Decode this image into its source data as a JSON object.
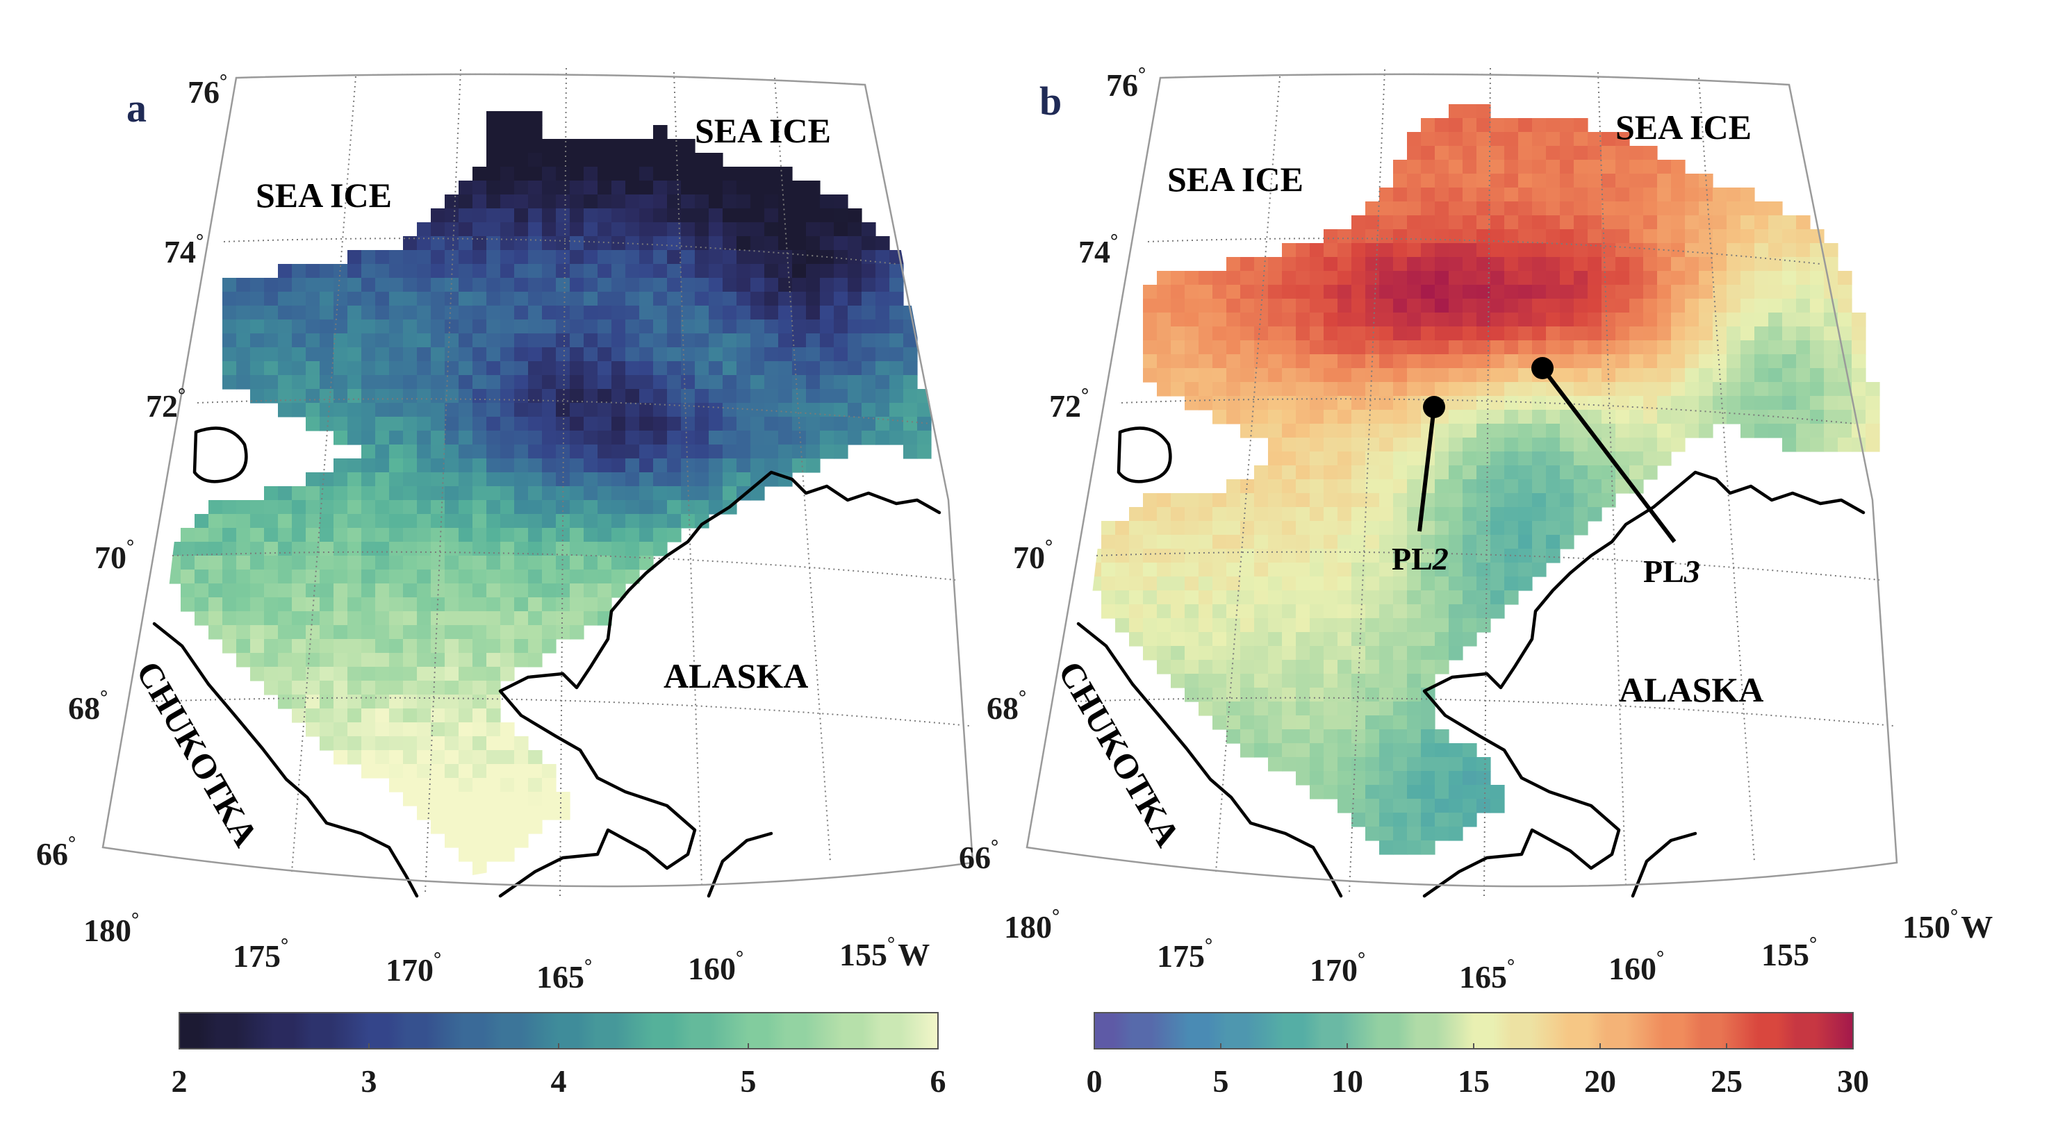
{
  "panels": [
    {
      "id": "a",
      "letter": "a",
      "labels": {
        "sea_ice_left": "SEA ICE",
        "sea_ice_right": "SEA ICE",
        "alaska": "ALASKA",
        "chukotka": "CHUKOTKA"
      },
      "lat_labels": [
        "76",
        "74",
        "72",
        "70",
        "68",
        "66"
      ],
      "lon_labels": [
        "180",
        "175",
        "170",
        "165",
        "160",
        "155"
      ],
      "lon_hemisphere": "W",
      "colorbar": {
        "min": 2,
        "max": 6,
        "ticks": [
          "2",
          "3",
          "4",
          "5",
          "6"
        ],
        "colormap": [
          "#1c1a33",
          "#2a2a5e",
          "#34458a",
          "#3a6a98",
          "#3f8c9a",
          "#55b19a",
          "#82cc9e",
          "#b6e0aa",
          "#f4f7c9"
        ]
      }
    },
    {
      "id": "b",
      "letter": "b",
      "labels": {
        "sea_ice_left": "SEA ICE",
        "sea_ice_right": "SEA ICE",
        "alaska": "ALASKA",
        "chukotka": "CHUKOTKA"
      },
      "points": [
        {
          "name_prefix": "PL",
          "name_index": "2"
        },
        {
          "name_prefix": "PL",
          "name_index": "3"
        }
      ],
      "lat_labels": [
        "76",
        "74",
        "72",
        "70",
        "68",
        "66"
      ],
      "lon_labels": [
        "180",
        "175",
        "170",
        "165",
        "160",
        "155",
        "150"
      ],
      "lon_hemisphere": "W",
      "colorbar": {
        "min": 0,
        "max": 30,
        "ticks": [
          "0",
          "5",
          "10",
          "15",
          "20",
          "25",
          "30"
        ],
        "colormap": [
          "#5e5aa6",
          "#4a8bb4",
          "#55aea5",
          "#93d0a2",
          "#e9f0b2",
          "#f6c785",
          "#f08c5c",
          "#d9473e",
          "#a3184b"
        ]
      }
    }
  ]
}
